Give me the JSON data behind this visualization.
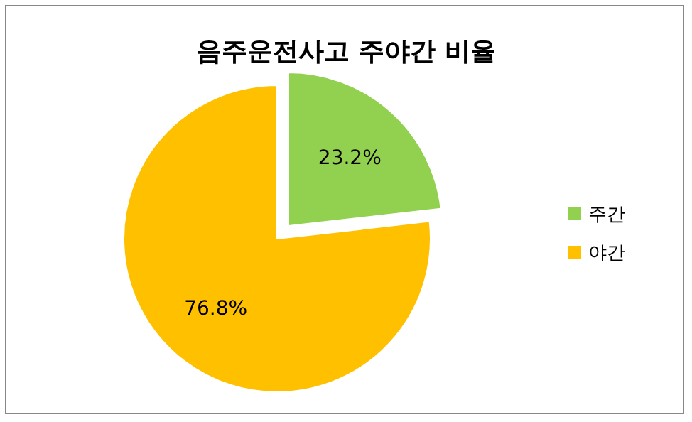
{
  "chart_data": {
    "type": "pie",
    "title": "음주운전사고 주야간 비율",
    "categories": [
      "주간",
      "야간"
    ],
    "values": [
      23.2,
      76.8
    ],
    "colors": [
      "#92d050",
      "#ffc000"
    ],
    "value_labels": [
      "23.2%",
      "76.8%"
    ],
    "legend": "right"
  }
}
